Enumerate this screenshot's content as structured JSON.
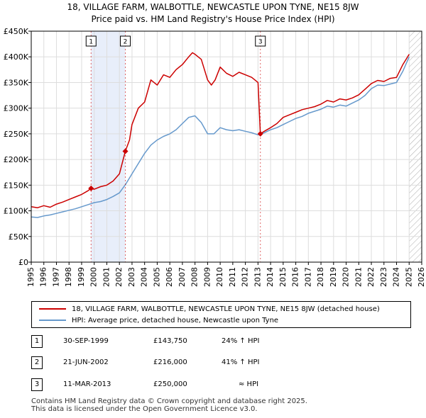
{
  "title_line1": "18, VILLAGE FARM, WALBOTTLE, NEWCASTLE UPON TYNE, NE15 8JW",
  "title_line2": "Price paid vs. HM Land Registry's House Price Index (HPI)",
  "colors": {
    "property": "#cc0000",
    "hpi": "#6699cc",
    "shade": "#e8eefa",
    "grid": "#dddddd",
    "hatch": "#aaaaaa"
  },
  "chart_data": {
    "type": "line",
    "title": "18, VILLAGE FARM, WALBOTTLE, NEWCASTLE UPON TYNE, NE15 8JW",
    "subtitle": "Price paid vs. HM Land Registry's House Price Index (HPI)",
    "xlabel": "",
    "ylabel": "",
    "xlim": [
      1995,
      2026
    ],
    "ylim": [
      0,
      450000
    ],
    "x_ticks": [
      1995,
      1996,
      1997,
      1998,
      1999,
      2000,
      2001,
      2002,
      2003,
      2004,
      2005,
      2006,
      2007,
      2008,
      2009,
      2010,
      2011,
      2012,
      2013,
      2014,
      2015,
      2016,
      2017,
      2018,
      2019,
      2020,
      2021,
      2022,
      2023,
      2024,
      2025,
      2026
    ],
    "y_ticks": [
      {
        "value": 0,
        "label": "£0"
      },
      {
        "value": 50000,
        "label": "£50K"
      },
      {
        "value": 100000,
        "label": "£100K"
      },
      {
        "value": 150000,
        "label": "£150K"
      },
      {
        "value": 200000,
        "label": "£200K"
      },
      {
        "value": 250000,
        "label": "£250K"
      },
      {
        "value": 300000,
        "label": "£300K"
      },
      {
        "value": 350000,
        "label": "£350K"
      },
      {
        "value": 400000,
        "label": "£400K"
      },
      {
        "value": 450000,
        "label": "£450K"
      }
    ],
    "grid": true,
    "shaded_ranges": [
      [
        1999.75,
        2002.47
      ]
    ],
    "future_hatch_from": 2025.0,
    "series": [
      {
        "name": "18, VILLAGE FARM, WALBOTTLE, NEWCASTLE UPON TYNE, NE15 8JW (detached house)",
        "color": "#cc0000",
        "x": [
          1995.0,
          1995.5,
          1996.0,
          1996.5,
          1997.0,
          1997.5,
          1998.0,
          1998.5,
          1999.0,
          1999.5,
          1999.75,
          2000.0,
          2000.5,
          2001.0,
          2001.5,
          2002.0,
          2002.47,
          2002.8,
          2003.0,
          2003.5,
          2004.0,
          2004.5,
          2005.0,
          2005.5,
          2006.0,
          2006.5,
          2007.0,
          2007.5,
          2007.8,
          2008.0,
          2008.5,
          2009.0,
          2009.3,
          2009.6,
          2010.0,
          2010.5,
          2011.0,
          2011.5,
          2012.0,
          2012.5,
          2013.0,
          2013.19,
          2013.5,
          2014.0,
          2014.5,
          2015.0,
          2015.5,
          2016.0,
          2016.5,
          2017.0,
          2017.5,
          2018.0,
          2018.5,
          2019.0,
          2019.5,
          2020.0,
          2020.5,
          2021.0,
          2021.5,
          2022.0,
          2022.5,
          2023.0,
          2023.5,
          2024.0,
          2024.5,
          2025.0
        ],
        "values": [
          108000,
          106000,
          110000,
          107000,
          113000,
          117000,
          122000,
          127000,
          132000,
          139000,
          143750,
          142000,
          147000,
          150000,
          158000,
          172000,
          216000,
          238000,
          268000,
          300000,
          312000,
          355000,
          345000,
          365000,
          360000,
          375000,
          385000,
          400000,
          408000,
          405000,
          395000,
          355000,
          345000,
          355000,
          380000,
          368000,
          362000,
          370000,
          365000,
          360000,
          350000,
          250000,
          255000,
          262000,
          270000,
          282000,
          287000,
          292000,
          297000,
          300000,
          303000,
          308000,
          315000,
          312000,
          318000,
          316000,
          320000,
          326000,
          337000,
          348000,
          354000,
          352000,
          358000,
          360000,
          385000,
          405000
        ]
      },
      {
        "name": "HPI: Average price, detached house, Newcastle upon Tyne",
        "color": "#6699cc",
        "x": [
          1995.0,
          1995.5,
          1996.0,
          1996.5,
          1997.0,
          1997.5,
          1998.0,
          1998.5,
          1999.0,
          1999.5,
          2000.0,
          2000.5,
          2001.0,
          2001.5,
          2002.0,
          2002.5,
          2003.0,
          2003.5,
          2004.0,
          2004.5,
          2005.0,
          2005.5,
          2006.0,
          2006.5,
          2007.0,
          2007.5,
          2008.0,
          2008.5,
          2009.0,
          2009.5,
          2010.0,
          2010.5,
          2011.0,
          2011.5,
          2012.0,
          2012.5,
          2013.0,
          2013.5,
          2014.0,
          2014.5,
          2015.0,
          2015.5,
          2016.0,
          2016.5,
          2017.0,
          2017.5,
          2018.0,
          2018.5,
          2019.0,
          2019.5,
          2020.0,
          2020.5,
          2021.0,
          2021.5,
          2022.0,
          2022.5,
          2023.0,
          2023.5,
          2024.0,
          2024.5,
          2025.0
        ],
        "values": [
          88000,
          87000,
          90000,
          92000,
          95000,
          98000,
          101000,
          104000,
          108000,
          112000,
          116000,
          118000,
          122000,
          128000,
          135000,
          152000,
          172000,
          192000,
          212000,
          228000,
          238000,
          245000,
          250000,
          258000,
          270000,
          282000,
          285000,
          272000,
          250000,
          250000,
          262000,
          258000,
          256000,
          258000,
          255000,
          252000,
          248000,
          252000,
          258000,
          262000,
          268000,
          274000,
          280000,
          284000,
          290000,
          294000,
          298000,
          304000,
          302000,
          306000,
          304000,
          310000,
          316000,
          325000,
          338000,
          345000,
          344000,
          347000,
          350000,
          372000,
          400000
        ]
      }
    ],
    "sales": [
      {
        "num": "1",
        "x": 1999.75,
        "value": 143750
      },
      {
        "num": "2",
        "x": 2002.47,
        "value": 216000
      },
      {
        "num": "3",
        "x": 2013.19,
        "value": 250000
      }
    ]
  },
  "legend": {
    "property": "18, VILLAGE FARM, WALBOTTLE, NEWCASTLE UPON TYNE, NE15 8JW (detached house)",
    "hpi": "HPI: Average price, detached house, Newcastle upon Tyne"
  },
  "transactions": [
    {
      "num": "1",
      "date": "30-SEP-1999",
      "price": "£143,750",
      "hpi": "24% ↑ HPI"
    },
    {
      "num": "2",
      "date": "21-JUN-2002",
      "price": "£216,000",
      "hpi": "41% ↑ HPI"
    },
    {
      "num": "3",
      "date": "11-MAR-2013",
      "price": "£250,000",
      "hpi": "≈ HPI"
    }
  ],
  "footer_line1": "Contains HM Land Registry data © Crown copyright and database right 2025.",
  "footer_line2": "This data is licensed under the Open Government Licence v3.0."
}
